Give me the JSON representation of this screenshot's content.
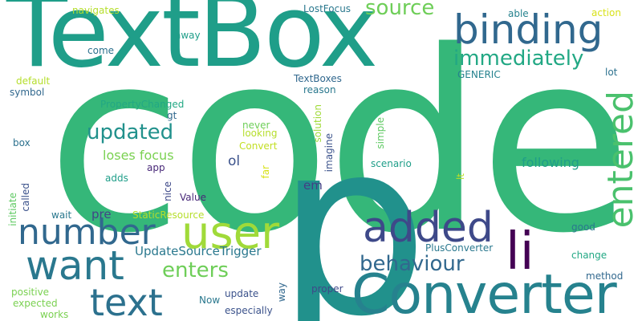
{
  "colors": {
    "background": "#ffffff",
    "palette": [
      "#440154",
      "#482878",
      "#3e4989",
      "#31688e",
      "#26828e",
      "#1f9e89",
      "#35b779",
      "#6ece58",
      "#b5de2b",
      "#fde725"
    ]
  },
  "words": [
    {
      "text": "code",
      "color": "#35b779"
    },
    {
      "text": "TextBox",
      "color": "#1f9e89"
    },
    {
      "text": "p",
      "color": "#21918c"
    },
    {
      "text": "Converter",
      "color": "#26828e"
    },
    {
      "text": "binding",
      "color": "#31688e"
    },
    {
      "text": "user",
      "color": "#a0da39"
    },
    {
      "text": "want",
      "color": "#2a788e"
    },
    {
      "text": "added",
      "color": "#3e4989"
    },
    {
      "text": "li",
      "color": "#440154"
    },
    {
      "text": "entered",
      "color": "#4ac16d"
    },
    {
      "text": "number",
      "color": "#31688e"
    },
    {
      "text": "text",
      "color": "#2c718e"
    },
    {
      "text": "immediately",
      "color": "#22a884"
    },
    {
      "text": "updated",
      "color": "#21918c"
    },
    {
      "text": "behaviour",
      "color": "#31688e"
    },
    {
      "text": "enters",
      "color": "#6ece58"
    },
    {
      "text": "source",
      "color": "#6ece58"
    },
    {
      "text": "loses focus",
      "color": "#7ad151"
    },
    {
      "text": "following",
      "color": "#1f9e89"
    },
    {
      "text": "UpdateSourceTrigger",
      "color": "#2a788e"
    },
    {
      "text": "ol",
      "color": "#3b528b"
    },
    {
      "text": "em",
      "color": "#433e85"
    },
    {
      "text": "pre",
      "color": "#414487"
    },
    {
      "text": "navigates",
      "color": "#b5de2b"
    },
    {
      "text": "LostFocus",
      "color": "#2a788e"
    },
    {
      "text": "able",
      "color": "#26828e"
    },
    {
      "text": "action",
      "color": "#d8e219"
    },
    {
      "text": "away",
      "color": "#1f9e89"
    },
    {
      "text": "come",
      "color": "#2c718e"
    },
    {
      "text": "default",
      "color": "#b5de2b"
    },
    {
      "text": "symbol",
      "color": "#31688e"
    },
    {
      "text": "TextBoxes",
      "color": "#31688e"
    },
    {
      "text": "GENERIC",
      "color": "#26828e"
    },
    {
      "text": "lot",
      "color": "#2c718e"
    },
    {
      "text": "reason",
      "color": "#2a788e"
    },
    {
      "text": "PropertyChanged",
      "color": "#22a884"
    },
    {
      "text": "gt",
      "color": "#31688e"
    },
    {
      "text": "box",
      "color": "#2c718e"
    },
    {
      "text": "never",
      "color": "#6ece58"
    },
    {
      "text": "looking",
      "color": "#b5de2b"
    },
    {
      "text": "Convert",
      "color": "#c2df23"
    },
    {
      "text": "solution",
      "color": "#a0da39"
    },
    {
      "text": "imagine",
      "color": "#3b528b"
    },
    {
      "text": "simple",
      "color": "#5ec962"
    },
    {
      "text": "app",
      "color": "#482878"
    },
    {
      "text": "adds",
      "color": "#1f9e89"
    },
    {
      "text": "far",
      "color": "#d8e219"
    },
    {
      "text": "scenario",
      "color": "#1f9e89"
    },
    {
      "text": "lt",
      "color": "#bddf26"
    },
    {
      "text": "initiate",
      "color": "#5ec962"
    },
    {
      "text": "called",
      "color": "#3b528b"
    },
    {
      "text": "nice",
      "color": "#3e4989"
    },
    {
      "text": "Value",
      "color": "#482878"
    },
    {
      "text": "wait",
      "color": "#2a788e"
    },
    {
      "text": "StaticResource",
      "color": "#b5de2b"
    },
    {
      "text": "good",
      "color": "#2a788e"
    },
    {
      "text": "PlusConverter",
      "color": "#2a788e"
    },
    {
      "text": "change",
      "color": "#22a884"
    },
    {
      "text": "method",
      "color": "#31688e"
    },
    {
      "text": "positive",
      "color": "#7ad151"
    },
    {
      "text": "update",
      "color": "#3b528b"
    },
    {
      "text": "way",
      "color": "#31688e"
    },
    {
      "text": "proper",
      "color": "#3e4989"
    },
    {
      "text": "Now",
      "color": "#2a788e"
    },
    {
      "text": "expected",
      "color": "#7ad151"
    },
    {
      "text": "works",
      "color": "#7ad151"
    },
    {
      "text": "especially",
      "color": "#3b528b"
    }
  ]
}
